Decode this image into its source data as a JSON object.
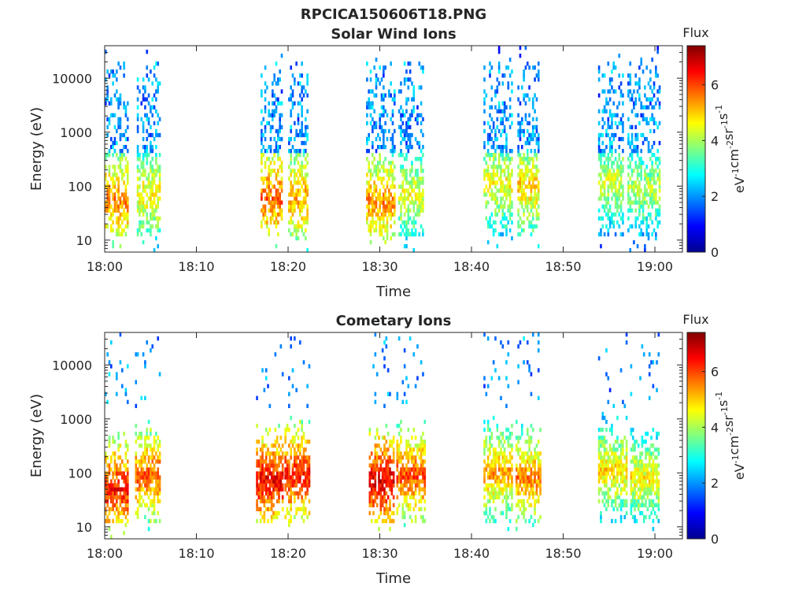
{
  "figure_title": "RPCICA150606T18.PNG",
  "colormap": [
    "#00008f",
    "#0000ff",
    "#0080ff",
    "#00ffff",
    "#80ff80",
    "#ffff00",
    "#ff8000",
    "#ff0000",
    "#800000"
  ],
  "colorbar": {
    "label": "Flux",
    "unit": "eV-1cm-2sr-1s-1",
    "ticks": [
      "0",
      "2",
      "4",
      "6"
    ],
    "range": [
      0,
      7.4
    ]
  },
  "chart_data": [
    {
      "type": "heatmap",
      "title": "Solar Wind Ions",
      "xlabel": "Time",
      "ylabel": "Energy (eV)",
      "xticks": [
        "18:00",
        "18:10",
        "18:20",
        "18:30",
        "18:40",
        "18:50",
        "19:00"
      ],
      "yticks": [
        "10",
        "100",
        "1000",
        "10000"
      ],
      "ylim": [
        6,
        40000
      ],
      "yscale": "log",
      "xlim_minutes": [
        0,
        63
      ],
      "bursts": [
        {
          "start": 0.0,
          "end": 2.6,
          "peak_energy": 55,
          "peak_flux": 5.6
        },
        {
          "start": 3.5,
          "end": 6.0,
          "peak_energy": 70,
          "peak_flux": 4.8
        },
        {
          "start": 17.0,
          "end": 19.2,
          "peak_energy": 60,
          "peak_flux": 5.8
        },
        {
          "start": 20.0,
          "end": 22.0,
          "peak_energy": 60,
          "peak_flux": 5.4
        },
        {
          "start": 28.5,
          "end": 31.5,
          "peak_energy": 50,
          "peak_flux": 5.5
        },
        {
          "start": 32.0,
          "end": 34.8,
          "peak_energy": 70,
          "peak_flux": 4.6
        },
        {
          "start": 41.3,
          "end": 44.5,
          "peak_energy": 120,
          "peak_flux": 4.7
        },
        {
          "start": 45.0,
          "end": 47.3,
          "peak_energy": 100,
          "peak_flux": 5.0
        },
        {
          "start": 53.8,
          "end": 56.5,
          "peak_energy": 130,
          "peak_flux": 4.4
        },
        {
          "start": 57.0,
          "end": 60.5,
          "peak_energy": 90,
          "peak_flux": 4.2
        }
      ]
    },
    {
      "type": "heatmap",
      "title": "Cometary Ions",
      "xlabel": "Time",
      "ylabel": "Energy (eV)",
      "xticks": [
        "18:00",
        "18:10",
        "18:20",
        "18:30",
        "18:40",
        "18:50",
        "19:00"
      ],
      "yticks": [
        "10",
        "100",
        "1000",
        "10000"
      ],
      "ylim": [
        6,
        40000
      ],
      "yscale": "log",
      "xlim_minutes": [
        0,
        63
      ],
      "bursts": [
        {
          "start": 0.0,
          "end": 2.6,
          "peak_energy": 50,
          "peak_flux": 6.4
        },
        {
          "start": 3.3,
          "end": 6.0,
          "peak_energy": 90,
          "peak_flux": 5.9
        },
        {
          "start": 16.5,
          "end": 19.3,
          "peak_energy": 70,
          "peak_flux": 6.6
        },
        {
          "start": 19.6,
          "end": 22.2,
          "peak_energy": 90,
          "peak_flux": 6.4
        },
        {
          "start": 28.8,
          "end": 31.5,
          "peak_energy": 70,
          "peak_flux": 6.7
        },
        {
          "start": 31.8,
          "end": 35.0,
          "peak_energy": 90,
          "peak_flux": 6.0
        },
        {
          "start": 41.3,
          "end": 44.5,
          "peak_energy": 100,
          "peak_flux": 5.4
        },
        {
          "start": 44.8,
          "end": 47.5,
          "peak_energy": 80,
          "peak_flux": 5.6
        },
        {
          "start": 53.8,
          "end": 57.0,
          "peak_energy": 110,
          "peak_flux": 5.0
        },
        {
          "start": 57.3,
          "end": 60.5,
          "peak_energy": 80,
          "peak_flux": 4.8
        }
      ]
    }
  ]
}
